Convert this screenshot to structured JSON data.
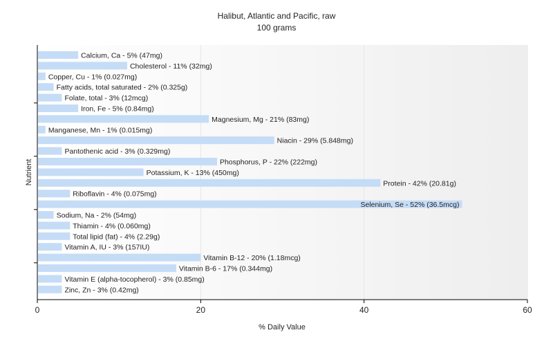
{
  "chart_data": {
    "type": "bar",
    "orientation": "horizontal",
    "title": "Halibut, Atlantic and Pacific, raw",
    "subtitle": "100 grams",
    "xlabel": "% Daily Value",
    "ylabel": "Nutrient",
    "xlim": [
      0,
      60
    ],
    "xticks": [
      0,
      20,
      40,
      60
    ],
    "grid": true,
    "colors": {
      "bar": "#c5dcf7",
      "axis": "#000000",
      "grid": "#e6e6e6"
    },
    "categories": [
      "Calcium, Ca - 5% (47mg)",
      "Cholesterol - 11% (32mg)",
      "Copper, Cu - 1% (0.027mg)",
      "Fatty acids, total saturated - 2% (0.325g)",
      "Folate, total - 3% (12mcg)",
      "Iron, Fe - 5% (0.84mg)",
      "Magnesium, Mg - 21% (83mg)",
      "Manganese, Mn - 1% (0.015mg)",
      "Niacin - 29% (5.848mg)",
      "Pantothenic acid - 3% (0.329mg)",
      "Phosphorus, P - 22% (222mg)",
      "Potassium, K - 13% (450mg)",
      "Protein - 42% (20.81g)",
      "Riboflavin - 4% (0.075mg)",
      "Selenium, Se - 52% (36.5mcg)",
      "Sodium, Na - 2% (54mg)",
      "Thiamin - 4% (0.060mg)",
      "Total lipid (fat) - 4% (2.29g)",
      "Vitamin A, IU - 3% (157IU)",
      "Vitamin B-12 - 20% (1.18mcg)",
      "Vitamin B-6 - 17% (0.344mg)",
      "Vitamin E (alpha-tocopherol) - 3% (0.85mg)",
      "Zinc, Zn - 3% (0.42mg)"
    ],
    "values": [
      5,
      11,
      1,
      2,
      3,
      5,
      21,
      1,
      29,
      3,
      22,
      13,
      42,
      4,
      52,
      2,
      4,
      4,
      3,
      20,
      17,
      3,
      3
    ]
  }
}
